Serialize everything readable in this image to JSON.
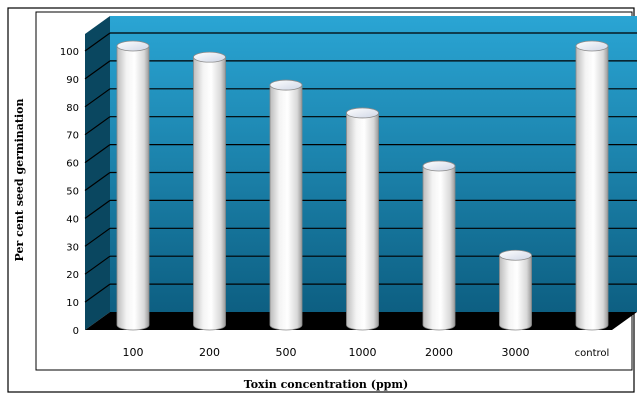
{
  "chart_data": {
    "type": "bar",
    "categories": [
      "100",
      "200",
      "500",
      "1000",
      "2000",
      "3000",
      "control"
    ],
    "values": [
      100,
      96,
      86,
      76,
      57,
      25,
      100
    ],
    "xlabel": "Toxin concentration (ppm)",
    "ylabel": "Per cent  seed germination",
    "ylim": [
      0,
      100
    ],
    "yticks": [
      0,
      10,
      20,
      30,
      40,
      50,
      60,
      70,
      80,
      90,
      100
    ],
    "grid": true,
    "style": "3d-cylinder",
    "colors": {
      "wall_top": "#2aa5d4",
      "wall_bottom": "#0d5f82",
      "side_wall": "#0a4760",
      "floor": "#000000",
      "bar": "#ffffff",
      "gridline": "#000000"
    }
  }
}
